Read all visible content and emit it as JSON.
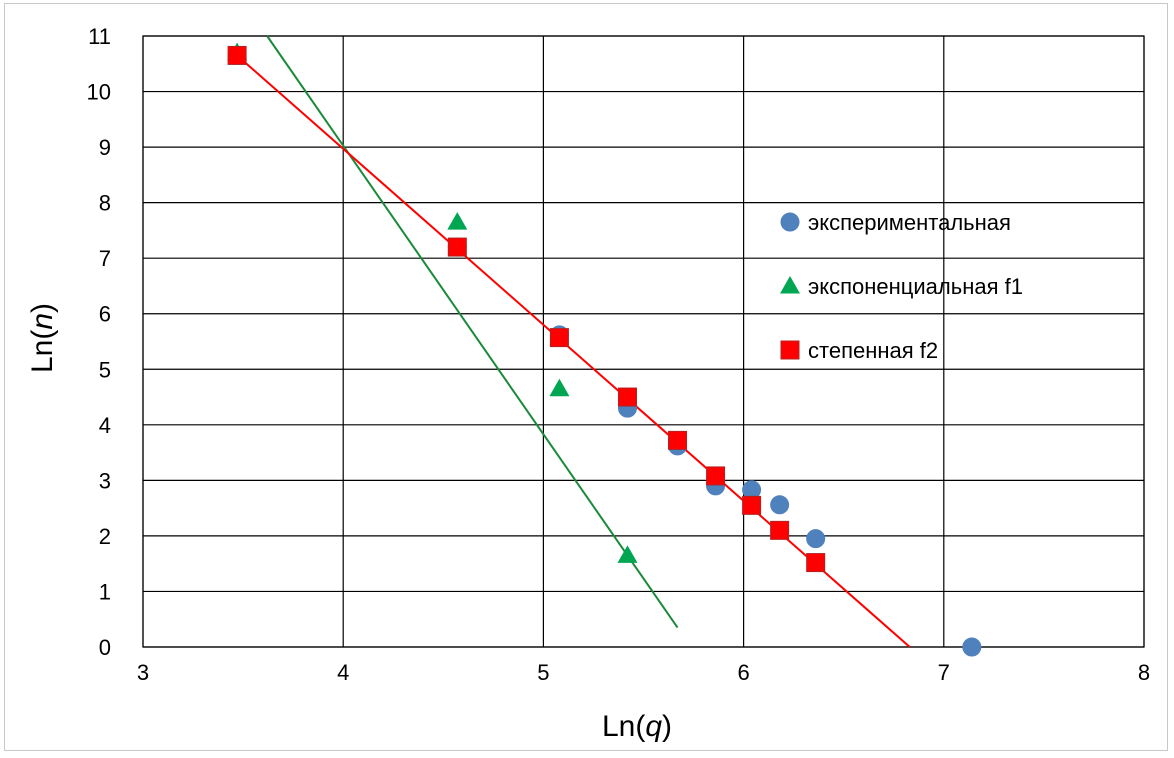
{
  "chart_data": {
    "type": "scatter",
    "xlabel": {
      "prefix": "Ln(",
      "var": "q",
      "suffix": ")"
    },
    "ylabel": {
      "prefix": "Ln(",
      "var": "n",
      "suffix": ")"
    },
    "xlim": [
      3,
      8
    ],
    "ylim": [
      0,
      11
    ],
    "xticks": [
      3,
      4,
      5,
      6,
      7,
      8
    ],
    "yticks": [
      0,
      1,
      2,
      3,
      4,
      5,
      6,
      7,
      8,
      9,
      10,
      11
    ],
    "grid": true,
    "legend_position": "right",
    "series": [
      {
        "name": "экспериментальная",
        "marker": "circle",
        "color": "#4f81bd",
        "points": [
          [
            3.47,
            10.65
          ],
          [
            4.57,
            7.2
          ],
          [
            5.08,
            5.62
          ],
          [
            5.42,
            4.3
          ],
          [
            5.67,
            3.62
          ],
          [
            5.86,
            2.9
          ],
          [
            6.04,
            2.83
          ],
          [
            6.18,
            2.56
          ],
          [
            6.36,
            1.95
          ],
          [
            7.14,
            0.0
          ]
        ]
      },
      {
        "name": "экспоненциальная f1",
        "marker": "triangle",
        "color": "#00a651",
        "points": [
          [
            3.47,
            10.7
          ],
          [
            4.57,
            7.65
          ],
          [
            5.08,
            4.65
          ],
          [
            5.42,
            1.65
          ]
        ]
      },
      {
        "name": "степенная f2",
        "marker": "square",
        "color": "#ff0000",
        "points": [
          [
            3.47,
            10.65
          ],
          [
            4.57,
            7.2
          ],
          [
            5.08,
            5.57
          ],
          [
            5.42,
            4.5
          ],
          [
            5.67,
            3.72
          ],
          [
            5.86,
            3.08
          ],
          [
            6.04,
            2.55
          ],
          [
            6.18,
            2.1
          ],
          [
            6.36,
            1.52
          ]
        ]
      }
    ],
    "trendlines": [
      {
        "color": "#1a8a3a",
        "points": [
          [
            3.62,
            11.0
          ],
          [
            5.67,
            0.35
          ]
        ]
      },
      {
        "color": "#ff0000",
        "points": [
          [
            3.47,
            10.65
          ],
          [
            6.83,
            0.0
          ]
        ]
      }
    ]
  }
}
